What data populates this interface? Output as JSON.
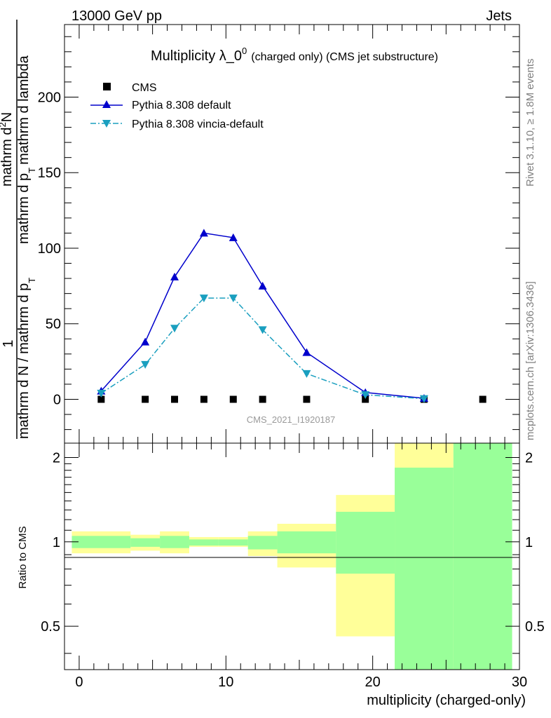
{
  "header": {
    "left": "13000 GeV pp",
    "right": "Jets"
  },
  "side_labels": {
    "top": "Rivet 3.1.10, ≥ 1.8M events",
    "bottom": "mcplots.cern.ch [arXiv:1306.3436]"
  },
  "watermark": "CMS_2021_I1920187",
  "colors": {
    "cms": "#000000",
    "pythia_default": "#0000cc",
    "pythia_vincia": "#1a9fbf",
    "band_stat": "#99ff99",
    "band_total": "#ffff99"
  },
  "chart_data": [
    {
      "type": "line",
      "title": "Multiplicity λ_0",
      "title_sup": "0",
      "title_suffix": "(charged only) (CMS jet substructure)",
      "ylabel": "1 / mathrm d N / mathrm d p_T mathrm d N / mathrm d p_T mathrm d lambda",
      "ylabel_parts": {
        "numer_1": "1",
        "denom_1": "mathrm d N / mathrm d p",
        "numer_2": "mathrm d",
        "numer_2_sup": "2",
        "numer_2_end": "N",
        "denom_2": "mathrm d p",
        "denom_2_sub": "T",
        "denom_2_end": "mathrm d lambda",
        "denom_1_sub": "T"
      },
      "xlim": [
        -1,
        30
      ],
      "ylim": [
        -29,
        248
      ],
      "yticks": [
        0,
        50,
        100,
        150,
        200
      ],
      "legend_position": "top-left",
      "series": [
        {
          "name": "CMS",
          "marker": "square",
          "x": [
            1.5,
            4.5,
            6.5,
            8.5,
            10.5,
            12.5,
            15.5,
            19.5,
            23.5,
            27.5
          ],
          "y": [
            0,
            0,
            0,
            0,
            0,
            0,
            0,
            0,
            0,
            0
          ]
        },
        {
          "name": "Pythia 8.308 default",
          "marker": "triangle-up",
          "line": "solid",
          "x": [
            1.5,
            4.5,
            6.5,
            8.5,
            10.5,
            12.5,
            15.5,
            19.5,
            23.5
          ],
          "y": [
            5.5,
            38,
            81,
            110,
            107,
            75,
            31,
            4.5,
            0.7
          ]
        },
        {
          "name": "Pythia 8.308 vincia-default",
          "marker": "triangle-down",
          "line": "dashdot",
          "x": [
            1.5,
            4.5,
            6.5,
            8.5,
            10.5,
            12.5,
            15.5,
            19.5,
            23.5
          ],
          "y": [
            4,
            23,
            47,
            67,
            67,
            46,
            17,
            3,
            0.4
          ]
        }
      ]
    },
    {
      "type": "area",
      "ylabel": "Ratio to CMS",
      "xlabel": "multiplicity (charged-only)",
      "xlim": [
        -1,
        30
      ],
      "ylim": [
        0.35,
        2.25
      ],
      "yticks": [
        0.5,
        1,
        2
      ],
      "xticks": [
        0,
        10,
        20,
        30
      ],
      "reference": 1,
      "bins": [
        {
          "x0": -0.5,
          "x1": 3.5,
          "total": [
            0.91,
            1.09
          ],
          "stat": [
            0.95,
            1.05
          ]
        },
        {
          "x0": 3.5,
          "x1": 5.5,
          "total": [
            0.93,
            1.06
          ],
          "stat": [
            0.96,
            1.03
          ]
        },
        {
          "x0": 5.5,
          "x1": 7.5,
          "total": [
            0.91,
            1.09
          ],
          "stat": [
            0.95,
            1.05
          ]
        },
        {
          "x0": 7.5,
          "x1": 9.5,
          "total": [
            0.96,
            1.04
          ],
          "stat": [
            0.97,
            1.02
          ]
        },
        {
          "x0": 9.5,
          "x1": 11.5,
          "total": [
            0.96,
            1.04
          ],
          "stat": [
            0.97,
            1.02
          ]
        },
        {
          "x0": 11.5,
          "x1": 13.5,
          "total": [
            0.89,
            1.09
          ],
          "stat": [
            0.94,
            1.05
          ]
        },
        {
          "x0": 13.5,
          "x1": 17.5,
          "total": [
            0.81,
            1.16
          ],
          "stat": [
            0.91,
            1.09
          ]
        },
        {
          "x0": 17.5,
          "x1": 21.5,
          "total": [
            0.46,
            1.47
          ],
          "stat": [
            0.77,
            1.28
          ]
        },
        {
          "x0": 21.5,
          "x1": 25.5,
          "total": [
            0.35,
            2.25
          ],
          "stat": [
            0.35,
            1.84
          ]
        },
        {
          "x0": 25.5,
          "x1": 29.5,
          "total": [
            0.35,
            2.25
          ],
          "stat": [
            0.35,
            2.25
          ]
        }
      ]
    }
  ]
}
